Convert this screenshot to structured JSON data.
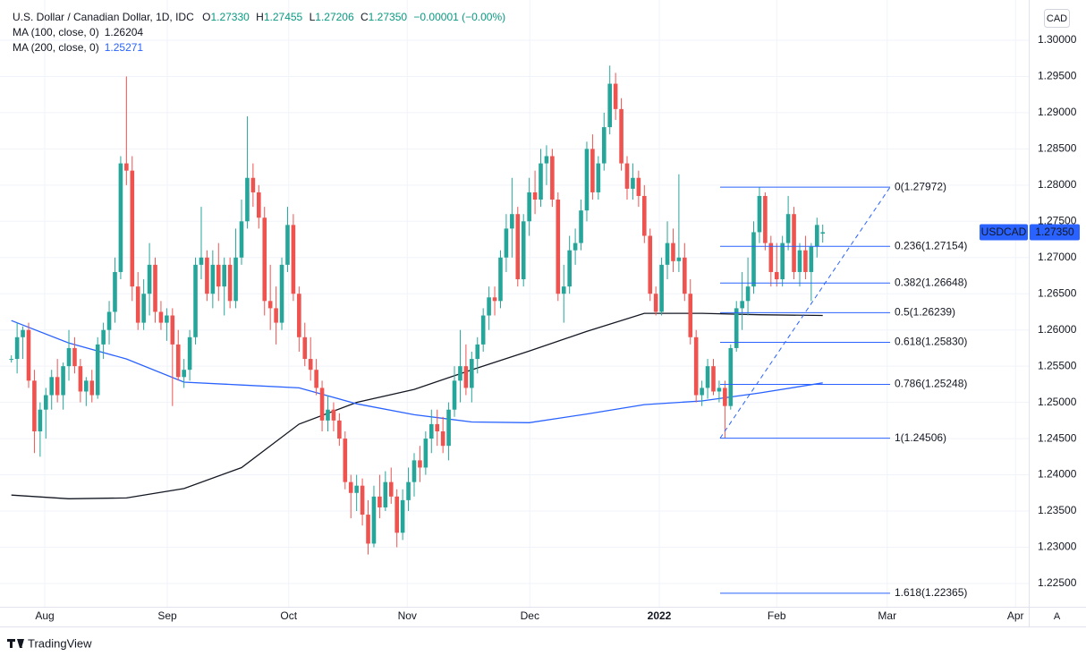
{
  "chart_data": {
    "type": "candlestick",
    "title": "U.S. Dollar / Canadian Dollar, 1D, IDC",
    "legend": [
      {
        "key": "O",
        "value": "1.27330"
      },
      {
        "key": "H",
        "value": "1.27455"
      },
      {
        "key": "L",
        "value": "1.27206"
      },
      {
        "key": "C",
        "value": "1.27350"
      }
    ],
    "change": "−0.00001 (−0.00%)",
    "currency": "CAD",
    "symbol": "USDCAD",
    "last_price_label": "1.27350",
    "auto_button": "A",
    "brand": "TradingView",
    "up_color": "#26a69a",
    "down_color": "#ef5350",
    "grid": true,
    "xlim": [
      -0.73,
      176.8
    ],
    "xticks": [
      {
        "value": 5.8,
        "label": "Aug"
      },
      {
        "value": 27.1,
        "label": "Sep"
      },
      {
        "value": 48.2,
        "label": "Oct"
      },
      {
        "value": 68.8,
        "label": "Nov"
      },
      {
        "value": 90.1,
        "label": "Dec"
      },
      {
        "value": 112.6,
        "label": "2022",
        "bold": true
      },
      {
        "value": 133.0,
        "label": "Feb"
      },
      {
        "value": 152.2,
        "label": "Mar"
      },
      {
        "value": 174.5,
        "label": "Apr"
      }
    ],
    "ylim": [
      1.22178,
      1.30457
    ],
    "yticks": [
      {
        "value": 1.225,
        "label": "1.22500"
      },
      {
        "value": 1.23,
        "label": "1.23000"
      },
      {
        "value": 1.235,
        "label": "1.23500"
      },
      {
        "value": 1.24,
        "label": "1.24000"
      },
      {
        "value": 1.245,
        "label": "1.24500"
      },
      {
        "value": 1.25,
        "label": "1.25000"
      },
      {
        "value": 1.255,
        "label": "1.25500"
      },
      {
        "value": 1.26,
        "label": "1.26000"
      },
      {
        "value": 1.265,
        "label": "1.26500"
      },
      {
        "value": 1.27,
        "label": "1.27000"
      },
      {
        "value": 1.275,
        "label": "1.27500"
      },
      {
        "value": 1.28,
        "label": "1.28000"
      },
      {
        "value": 1.285,
        "label": "1.28500"
      },
      {
        "value": 1.29,
        "label": "1.29000"
      },
      {
        "value": 1.295,
        "label": "1.29500"
      },
      {
        "value": 1.3,
        "label": "1.30000"
      }
    ],
    "open": [
      1.256,
      1.256,
      1.259,
      1.26,
      1.253,
      1.246,
      1.249,
      1.251,
      1.2535,
      1.251,
      1.255,
      1.2575,
      1.255,
      1.2515,
      1.253,
      1.251,
      1.258,
      1.26,
      1.2625,
      1.268,
      1.283,
      1.282,
      1.266,
      1.261,
      1.265,
      1.269,
      1.2625,
      1.261,
      1.262,
      1.258,
      1.2535,
      1.2545,
      1.259,
      1.269,
      1.27,
      1.265,
      1.269,
      1.266,
      1.269,
      1.264,
      1.27,
      1.275,
      1.281,
      1.279,
      1.2755,
      1.264,
      1.263,
      1.261,
      1.269,
      1.2745,
      1.265,
      1.259,
      1.256,
      1.2545,
      1.252,
      1.2475,
      1.249,
      1.2475,
      1.245,
      1.239,
      1.2375,
      1.2385,
      1.2345,
      1.2305,
      1.237,
      1.2355,
      1.239,
      1.237,
      1.232,
      1.2365,
      1.239,
      1.242,
      1.241,
      1.245,
      1.247,
      1.246,
      1.244,
      1.249,
      1.253,
      1.255,
      1.252,
      1.256,
      1.258,
      1.262,
      1.2645,
      1.264,
      1.27,
      1.274,
      1.276,
      1.267,
      1.275,
      1.279,
      1.278,
      1.283,
      1.284,
      1.278,
      1.265,
      1.266,
      1.271,
      1.272,
      1.2765,
      1.285,
      1.279,
      1.283,
      1.288,
      1.294,
      1.2905,
      1.283,
      1.2795,
      1.281,
      1.2785,
      1.273,
      1.265,
      1.2625,
      1.269,
      1.272,
      1.2695,
      1.27,
      1.265,
      1.259,
      1.251,
      1.252,
      1.255,
      1.2515,
      1.252,
      1.2495,
      1.2575,
      1.263,
      1.264,
      1.266,
      1.2735,
      1.2785,
      1.272,
      1.268,
      1.267,
      1.272,
      1.276,
      1.268,
      1.271,
      1.268,
      1.2715,
      1.2733
    ],
    "high": [
      1.2565,
      1.261,
      1.2605,
      1.261,
      1.2545,
      1.25,
      1.252,
      1.2545,
      1.256,
      1.2555,
      1.26,
      1.259,
      1.256,
      1.2535,
      1.2545,
      1.259,
      1.261,
      1.264,
      1.27,
      1.284,
      1.295,
      1.284,
      1.268,
      1.267,
      1.272,
      1.27,
      1.264,
      1.263,
      1.263,
      1.26,
      1.256,
      1.26,
      1.27,
      1.277,
      1.271,
      1.271,
      1.272,
      1.27,
      1.27,
      1.274,
      1.278,
      1.2895,
      1.283,
      1.28,
      1.277,
      1.269,
      1.266,
      1.27,
      1.277,
      1.276,
      1.266,
      1.261,
      1.259,
      1.256,
      1.253,
      1.251,
      1.25,
      1.2485,
      1.246,
      1.24,
      1.24,
      1.2395,
      1.2365,
      1.2385,
      1.24,
      1.2405,
      1.241,
      1.238,
      1.238,
      1.241,
      1.243,
      1.244,
      1.246,
      1.249,
      1.249,
      1.248,
      1.25,
      1.255,
      1.26,
      1.258,
      1.257,
      1.259,
      1.263,
      1.266,
      1.266,
      1.271,
      1.276,
      1.281,
      1.277,
      1.276,
      1.281,
      1.282,
      1.285,
      1.2855,
      1.285,
      1.279,
      1.269,
      1.273,
      1.274,
      1.278,
      1.286,
      1.287,
      1.284,
      1.29,
      1.2965,
      1.2955,
      1.292,
      1.284,
      1.283,
      1.282,
      1.28,
      1.274,
      1.266,
      1.27,
      1.275,
      1.274,
      1.2815,
      1.272,
      1.267,
      1.26,
      1.253,
      1.256,
      1.256,
      1.253,
      1.253,
      1.258,
      1.264,
      1.268,
      1.27,
      1.275,
      1.27972,
      1.279,
      1.273,
      1.272,
      1.273,
      1.2785,
      1.277,
      1.272,
      1.273,
      1.272,
      1.2755,
      1.27455
    ],
    "low": [
      1.2555,
      1.254,
      1.256,
      1.252,
      1.243,
      1.2425,
      1.245,
      1.249,
      1.25,
      1.249,
      1.253,
      1.254,
      1.25,
      1.2495,
      1.25,
      1.2505,
      1.256,
      1.258,
      1.261,
      1.267,
      1.28,
      1.264,
      1.26,
      1.26,
      1.262,
      1.261,
      1.26,
      1.2585,
      1.2495,
      1.253,
      1.252,
      1.253,
      1.258,
      1.267,
      1.264,
      1.263,
      1.264,
      1.262,
      1.263,
      1.263,
      1.269,
      1.274,
      1.277,
      1.274,
      1.262,
      1.26,
      1.258,
      1.26,
      1.268,
      1.264,
      1.257,
      1.255,
      1.253,
      1.251,
      1.246,
      1.246,
      1.246,
      1.244,
      1.238,
      1.234,
      1.235,
      1.233,
      1.229,
      1.23,
      1.234,
      1.235,
      1.236,
      1.23,
      1.231,
      1.235,
      1.237,
      1.239,
      1.24,
      1.243,
      1.244,
      1.243,
      1.242,
      1.248,
      1.25,
      1.251,
      1.25,
      1.254,
      1.257,
      1.26,
      1.262,
      1.263,
      1.268,
      1.27,
      1.266,
      1.266,
      1.273,
      1.276,
      1.277,
      1.28,
      1.277,
      1.264,
      1.261,
      1.265,
      1.269,
      1.271,
      1.275,
      1.278,
      1.278,
      1.282,
      1.287,
      1.289,
      1.282,
      1.278,
      1.278,
      1.277,
      1.272,
      1.264,
      1.262,
      1.262,
      1.267,
      1.268,
      1.268,
      1.264,
      1.258,
      1.25,
      1.2495,
      1.2505,
      1.251,
      1.25,
      1.24506,
      1.249,
      1.257,
      1.26,
      1.262,
      1.265,
      1.272,
      1.271,
      1.266,
      1.266,
      1.266,
      1.271,
      1.267,
      1.266,
      1.267,
      1.264,
      1.27,
      1.27206
    ],
    "close": [
      1.256,
      1.259,
      1.26,
      1.253,
      1.246,
      1.249,
      1.251,
      1.2535,
      1.251,
      1.255,
      1.2575,
      1.255,
      1.2515,
      1.253,
      1.251,
      1.258,
      1.26,
      1.2625,
      1.268,
      1.283,
      1.282,
      1.266,
      1.261,
      1.265,
      1.269,
      1.2625,
      1.261,
      1.262,
      1.258,
      1.2535,
      1.2545,
      1.259,
      1.269,
      1.27,
      1.265,
      1.269,
      1.266,
      1.269,
      1.264,
      1.27,
      1.275,
      1.281,
      1.279,
      1.2755,
      1.264,
      1.263,
      1.261,
      1.269,
      1.2745,
      1.265,
      1.259,
      1.256,
      1.2545,
      1.252,
      1.2475,
      1.249,
      1.2475,
      1.245,
      1.239,
      1.2375,
      1.2385,
      1.2345,
      1.2305,
      1.237,
      1.2355,
      1.239,
      1.237,
      1.232,
      1.2365,
      1.239,
      1.242,
      1.241,
      1.245,
      1.247,
      1.246,
      1.244,
      1.249,
      1.253,
      1.255,
      1.252,
      1.256,
      1.258,
      1.262,
      1.2645,
      1.264,
      1.27,
      1.274,
      1.276,
      1.267,
      1.275,
      1.279,
      1.278,
      1.283,
      1.284,
      1.278,
      1.265,
      1.266,
      1.271,
      1.272,
      1.2765,
      1.285,
      1.279,
      1.283,
      1.288,
      1.294,
      1.2905,
      1.283,
      1.2795,
      1.281,
      1.2785,
      1.273,
      1.265,
      1.2625,
      1.269,
      1.272,
      1.2695,
      1.27,
      1.265,
      1.259,
      1.251,
      1.252,
      1.255,
      1.2515,
      1.252,
      1.2495,
      1.2575,
      1.263,
      1.264,
      1.266,
      1.2735,
      1.2785,
      1.272,
      1.268,
      1.267,
      1.272,
      1.276,
      1.268,
      1.271,
      1.268,
      1.2715,
      1.2745,
      1.2735
    ],
    "moving_averages": [
      {
        "name": "MA (100, close, 0)",
        "value_label": "1.26204",
        "color": "#131722",
        "x": [
          0,
          10,
          20,
          30,
          40,
          50,
          60,
          70,
          80,
          90,
          100,
          110,
          120,
          130,
          141
        ],
        "values": [
          1.2372,
          1.2367,
          1.2368,
          1.2381,
          1.241,
          1.247,
          1.25,
          1.2518,
          1.2545,
          1.2571,
          1.2598,
          1.2623,
          1.2623,
          1.2621,
          1.262
        ]
      },
      {
        "name": "MA (200, close, 0)",
        "value_label": "1.25271",
        "color": "#2962ff",
        "x": [
          0,
          10,
          20,
          30,
          40,
          50,
          60,
          70,
          80,
          90,
          100,
          110,
          120,
          130,
          141
        ],
        "values": [
          1.2613,
          1.2582,
          1.256,
          1.2528,
          1.2524,
          1.252,
          1.2498,
          1.2483,
          1.2473,
          1.2472,
          1.2484,
          1.2497,
          1.2502,
          1.2513,
          1.2527
        ]
      }
    ],
    "fib_color": "#2962ff",
    "fib_levels": [
      {
        "label": "0(1.27972)",
        "value": 1.27972
      },
      {
        "label": "0.236(1.27154)",
        "value": 1.27154
      },
      {
        "label": "0.382(1.26648)",
        "value": 1.26648
      },
      {
        "label": "0.5(1.26239)",
        "value": 1.26239
      },
      {
        "label": "0.618(1.25830)",
        "value": 1.2583
      },
      {
        "label": "0.786(1.25248)",
        "value": 1.25248
      },
      {
        "label": "1(1.24506)",
        "value": 1.24506
      },
      {
        "label": "1.618(1.22365)",
        "value": 1.22365
      }
    ]
  }
}
